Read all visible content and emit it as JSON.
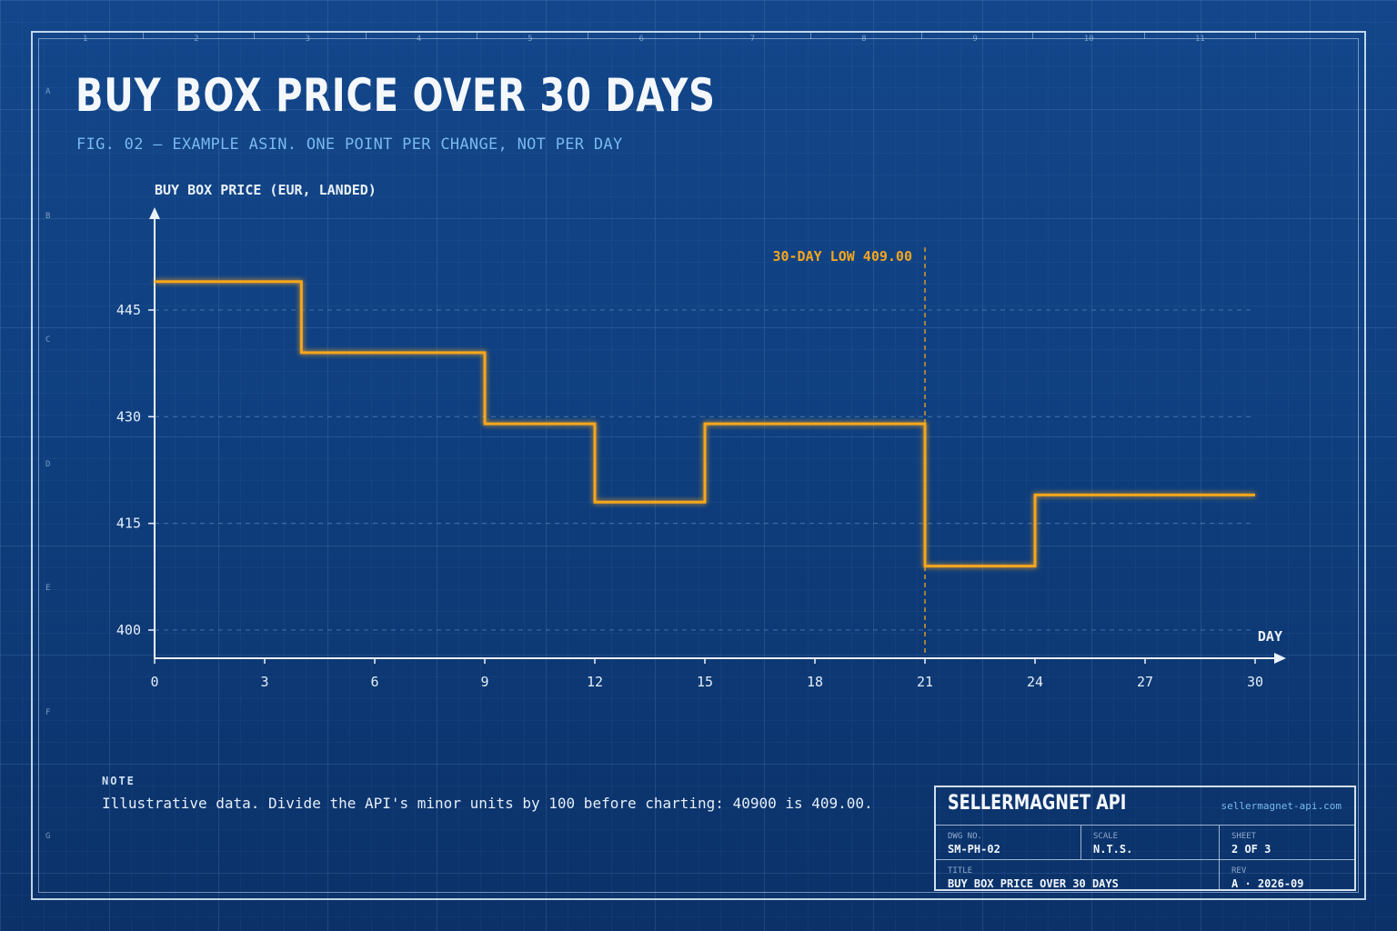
{
  "ruler": {
    "columns": [
      "1",
      "2",
      "3",
      "4",
      "5",
      "6",
      "7",
      "8",
      "9",
      "10",
      "11"
    ],
    "rows": [
      "A",
      "B",
      "C",
      "D",
      "E",
      "F",
      "G"
    ]
  },
  "header": {
    "title": "BUY BOX PRICE OVER 30 DAYS",
    "subtitle": "FIG. 02  —  EXAMPLE ASIN. ONE POINT PER CHANGE, NOT PER DAY"
  },
  "chart_data": {
    "type": "line",
    "step": "post",
    "ylabel": "BUY BOX PRICE  (EUR, LANDED)",
    "xlabel": "DAY",
    "xlim": [
      0,
      30
    ],
    "ylim": [
      396,
      450
    ],
    "xticks": [
      0,
      3,
      6,
      9,
      12,
      15,
      18,
      21,
      24,
      27,
      30
    ],
    "yticks": [
      400,
      415,
      430,
      445
    ],
    "grid": "horizontal dashed",
    "series": [
      {
        "color": "#f6a61f",
        "x": [
          0,
          4,
          9,
          12,
          15,
          21,
          24,
          30
        ],
        "y": [
          449.0,
          439.0,
          429.0,
          418.0,
          429.0,
          409.0,
          419.0,
          419.0
        ]
      }
    ],
    "annotation": {
      "text": "30-DAY LOW  409.00",
      "x": 21,
      "value": 409.0
    }
  },
  "note": {
    "label": "NOTE",
    "text": "Illustrative data. Divide the API's minor units by 100 before charting: 40900 is 409.00."
  },
  "title_block": {
    "company": "SELLERMAGNET API",
    "url": "sellermagnet-api.com",
    "dwg_label": "DWG NO.",
    "dwg_value": "SM-PH-02",
    "scale_label": "SCALE",
    "scale_value": "N.T.S.",
    "sheet_label": "SHEET",
    "sheet_value": "2 OF 3",
    "title_label": "TITLE",
    "title_value": "BUY BOX PRICE OVER 30 DAYS",
    "rev_label": "REV",
    "rev_value": "A · 2026-09"
  },
  "colors": {
    "background": "#0f3f7f",
    "accent": "#f6a61f",
    "subtitle": "#78b9ee"
  }
}
